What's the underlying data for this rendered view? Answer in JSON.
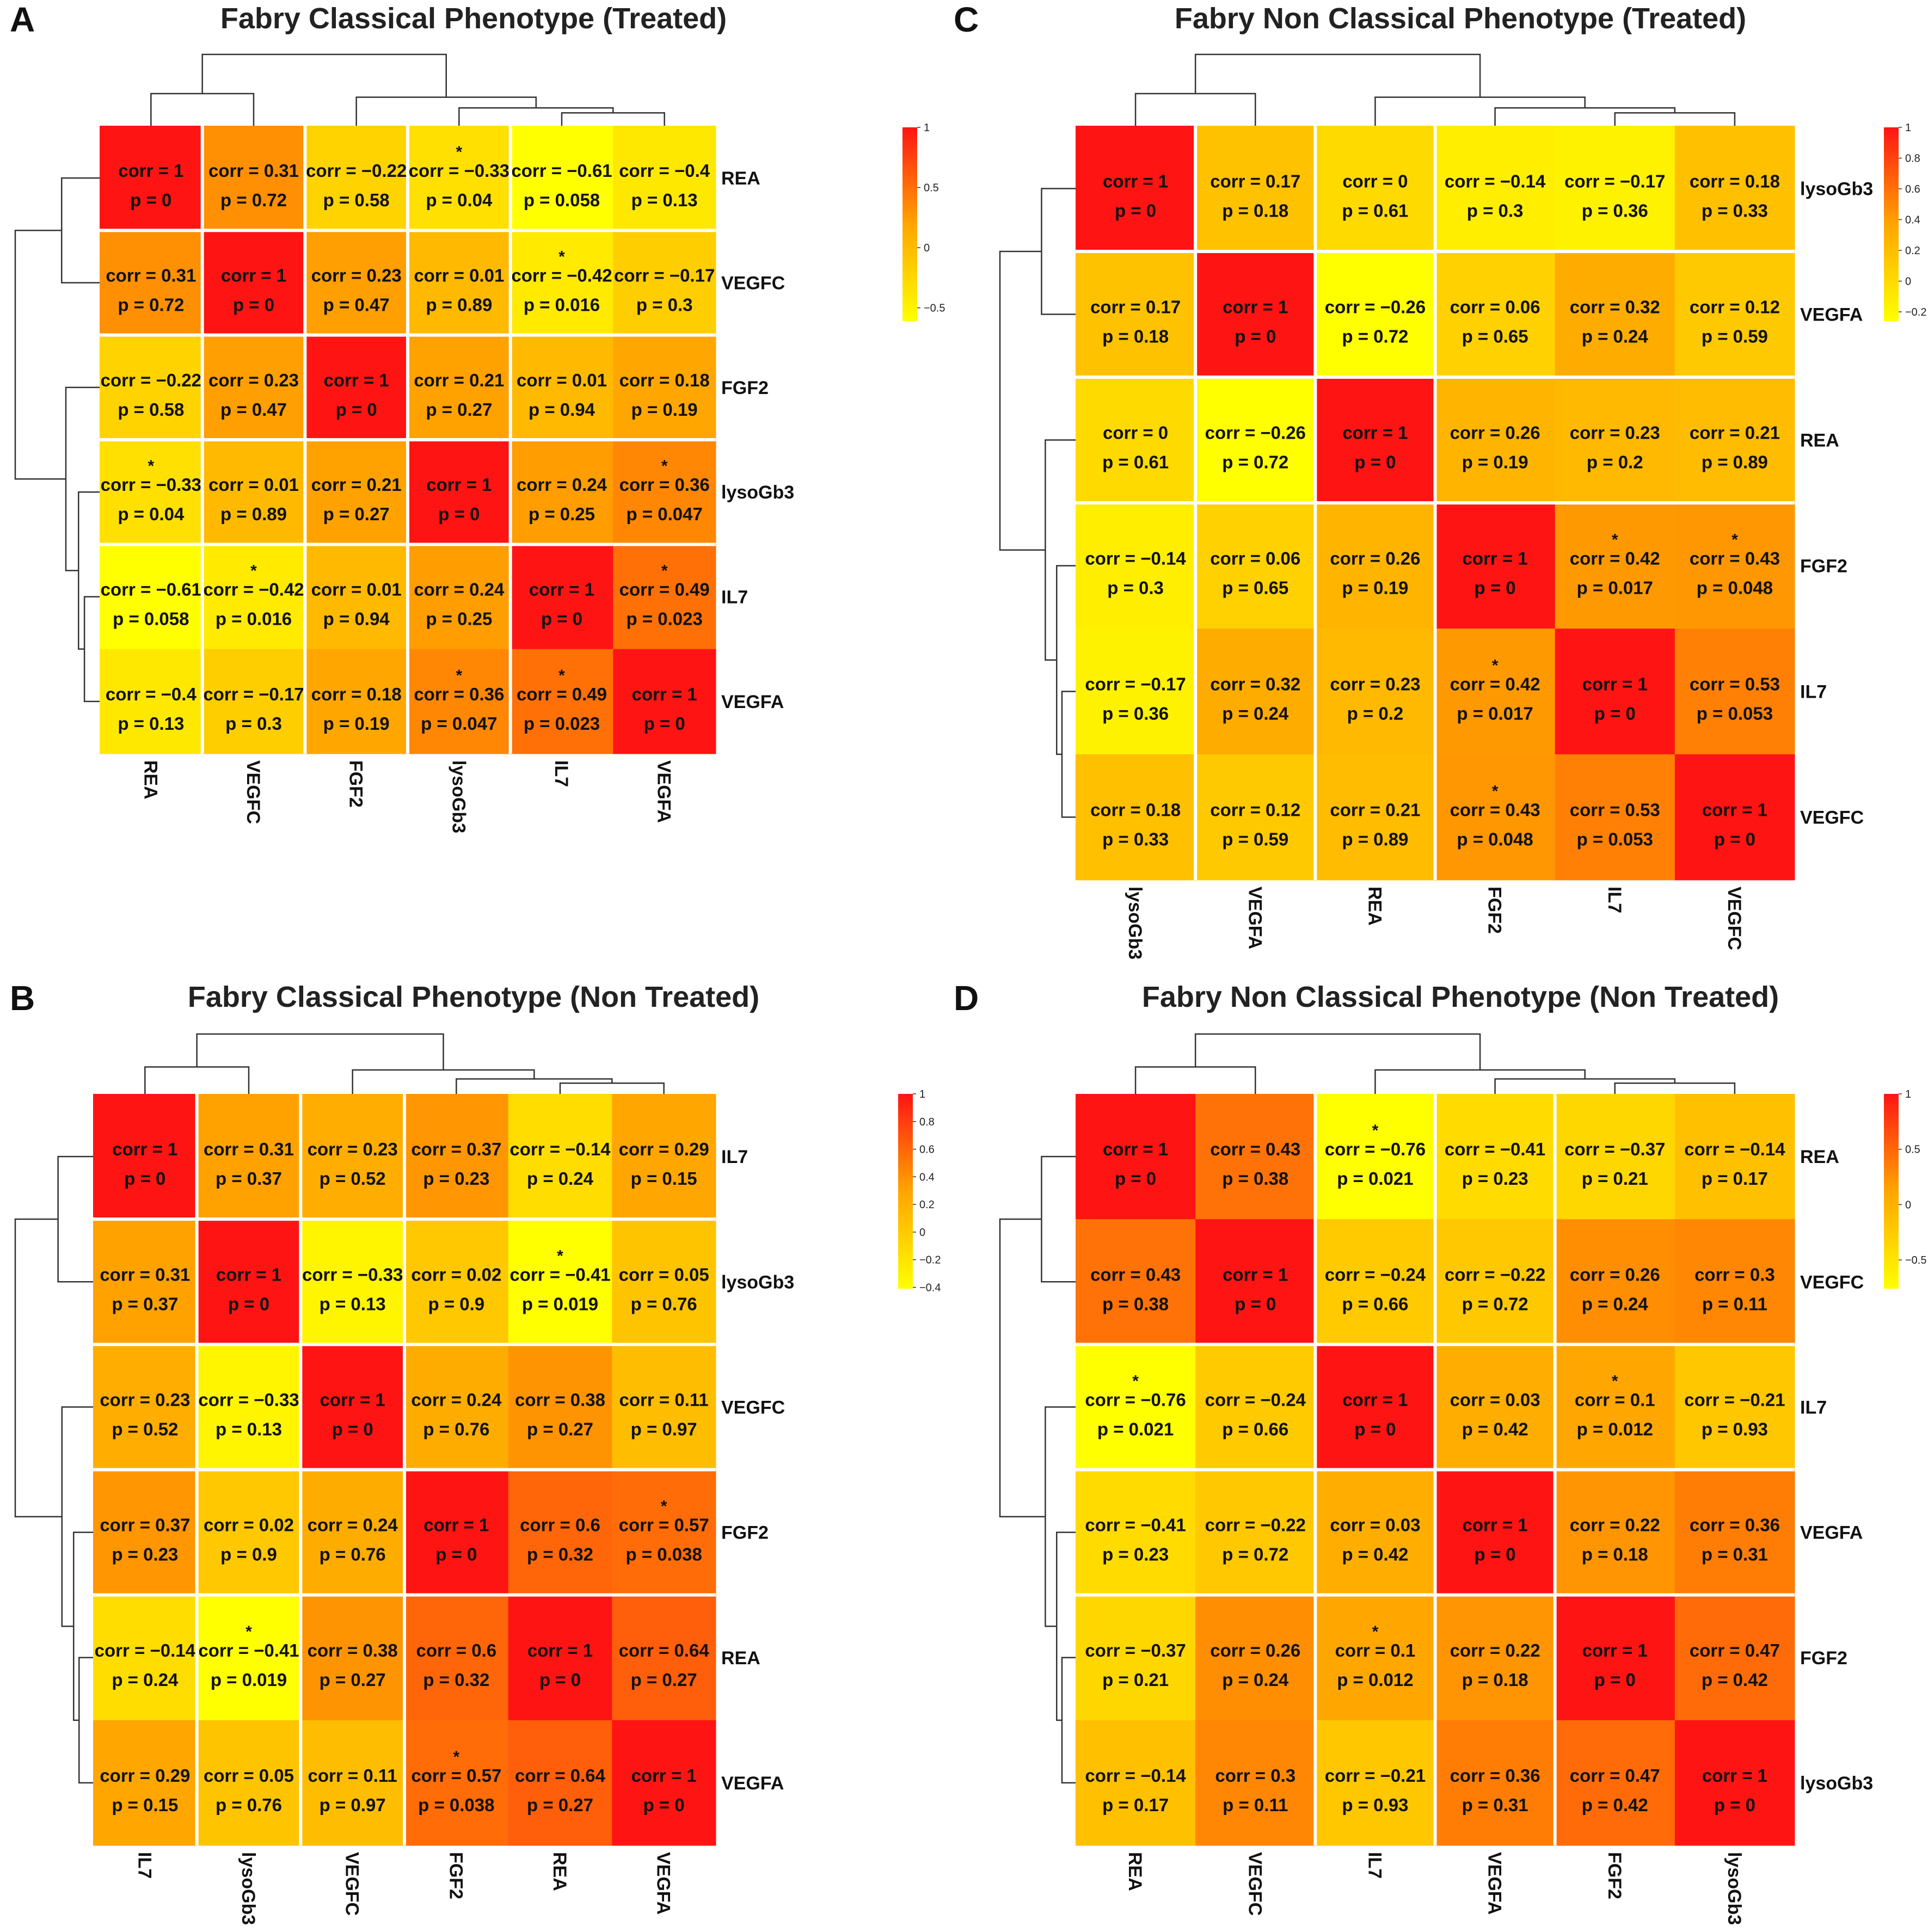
{
  "chart_data": [
    {
      "type": "heatmap",
      "panel": "A",
      "title": "Fabry Classical Phenotype (Treated)",
      "row_labels": [
        "REA",
        "VEGFC",
        "FGF2",
        "lysoGb3",
        "IL7",
        "VEGFA"
      ],
      "col_labels": [
        "REA",
        "VEGFC",
        "FGF2",
        "lysoGb3",
        "IL7",
        "VEGFA"
      ],
      "corr": [
        [
          1,
          0.31,
          -0.22,
          -0.33,
          -0.61,
          -0.4
        ],
        [
          0.31,
          1,
          0.23,
          0.01,
          -0.42,
          -0.17
        ],
        [
          -0.22,
          0.23,
          1,
          0.21,
          0.01,
          0.18
        ],
        [
          -0.33,
          0.01,
          0.21,
          1,
          0.24,
          0.36
        ],
        [
          -0.61,
          -0.42,
          0.01,
          0.24,
          1,
          0.49
        ],
        [
          -0.4,
          -0.17,
          0.18,
          0.36,
          0.49,
          1
        ]
      ],
      "p": [
        [
          "0",
          "0.72",
          "0.58",
          "0.04",
          "0.058",
          "0.13"
        ],
        [
          "0.72",
          "0",
          "0.47",
          "0.89",
          "0.016",
          "0.3"
        ],
        [
          "0.58",
          "0.47",
          "0",
          "0.27",
          "0.94",
          "0.19"
        ],
        [
          "0.04",
          "0.89",
          "0.27",
          "0",
          "0.25",
          "0.047"
        ],
        [
          "0.058",
          "0.016",
          "0.94",
          "0.25",
          "0",
          "0.023"
        ],
        [
          "0.13",
          "0.3",
          "0.19",
          "0.047",
          "0.023",
          "0"
        ]
      ],
      "significant": [
        [
          false,
          false,
          false,
          true,
          false,
          false
        ],
        [
          false,
          false,
          false,
          false,
          true,
          false
        ],
        [
          false,
          false,
          false,
          false,
          false,
          false
        ],
        [
          true,
          false,
          false,
          false,
          false,
          true
        ],
        [
          false,
          true,
          false,
          false,
          false,
          true
        ],
        [
          false,
          false,
          false,
          true,
          true,
          false
        ]
      ],
      "row_gaps_after": [
        1,
        2,
        3,
        4
      ],
      "col_gaps_after": [
        1,
        2,
        3,
        4
      ],
      "legend_ticks": [
        "1",
        "0.5",
        "0",
        "-0.5"
      ],
      "legend_range": [
        -0.61,
        1
      ]
    },
    {
      "type": "heatmap",
      "panel": "B",
      "title": "Fabry Classical Phenotype (Non Treated)",
      "row_labels": [
        "IL7",
        "lysoGb3",
        "VEGFC",
        "FGF2",
        "REA",
        "VEGFA"
      ],
      "col_labels": [
        "IL7",
        "lysoGb3",
        "VEGFC",
        "FGF2",
        "REA",
        "VEGFA"
      ],
      "corr": [
        [
          1,
          0.31,
          0.23,
          0.37,
          -0.14,
          0.29
        ],
        [
          0.31,
          1,
          -0.33,
          0.02,
          -0.41,
          0.05
        ],
        [
          0.23,
          -0.33,
          1,
          0.24,
          0.38,
          0.11
        ],
        [
          0.37,
          0.02,
          0.24,
          1,
          0.6,
          0.57
        ],
        [
          -0.14,
          -0.41,
          0.38,
          0.6,
          1,
          0.64
        ],
        [
          0.29,
          0.05,
          0.11,
          0.57,
          0.64,
          1
        ]
      ],
      "p": [
        [
          "0",
          "0.37",
          "0.52",
          "0.23",
          "0.24",
          "0.15"
        ],
        [
          "0.37",
          "0",
          "0.13",
          "0.9",
          "0.019",
          "0.76"
        ],
        [
          "0.52",
          "0.13",
          "0",
          "0.76",
          "0.27",
          "0.97"
        ],
        [
          "0.23",
          "0.9",
          "0.76",
          "0",
          "0.32",
          "0.038"
        ],
        [
          "0.24",
          "0.019",
          "0.27",
          "0.32",
          "0",
          "0.27"
        ],
        [
          "0.15",
          "0.76",
          "0.97",
          "0.038",
          "0.27",
          "0"
        ]
      ],
      "significant": [
        [
          false,
          false,
          false,
          false,
          false,
          false
        ],
        [
          false,
          false,
          false,
          false,
          true,
          false
        ],
        [
          false,
          false,
          false,
          false,
          false,
          false
        ],
        [
          false,
          false,
          false,
          false,
          false,
          true
        ],
        [
          false,
          true,
          false,
          false,
          false,
          false
        ],
        [
          false,
          false,
          false,
          true,
          false,
          false
        ]
      ],
      "row_gaps_after": [
        1,
        2,
        3,
        4
      ],
      "col_gaps_after": [
        1,
        2,
        3
      ],
      "legend_ticks": [
        "1",
        "0.8",
        "0.6",
        "0.4",
        "0.2",
        "0",
        "-0.2",
        "-0.4"
      ],
      "legend_range": [
        -0.41,
        1
      ]
    },
    {
      "type": "heatmap",
      "panel": "C",
      "title": "Fabry Non Classical Phenotype (Treated)",
      "row_labels": [
        "lysoGb3",
        "VEGFA",
        "REA",
        "FGF2",
        "IL7",
        "VEGFC"
      ],
      "col_labels": [
        "lysoGb3",
        "VEGFA",
        "REA",
        "FGF2",
        "IL7",
        "VEGFC"
      ],
      "corr": [
        [
          1,
          0.17,
          0,
          -0.14,
          -0.17,
          0.18
        ],
        [
          0.17,
          1,
          -0.26,
          0.06,
          0.32,
          0.12
        ],
        [
          0,
          -0.26,
          1,
          0.26,
          0.23,
          0.21
        ],
        [
          -0.14,
          0.06,
          0.26,
          1,
          0.42,
          0.43
        ],
        [
          -0.17,
          0.32,
          0.23,
          0.42,
          1,
          0.53
        ],
        [
          0.18,
          0.12,
          0.21,
          0.43,
          0.53,
          1
        ]
      ],
      "p": [
        [
          "0",
          "0.18",
          "0.61",
          "0.3",
          "0.36",
          "0.33"
        ],
        [
          "0.18",
          "0",
          "0.72",
          "0.65",
          "0.24",
          "0.59"
        ],
        [
          "0.61",
          "0.72",
          "0",
          "0.19",
          "0.2",
          "0.89"
        ],
        [
          "0.3",
          "0.65",
          "0.19",
          "0",
          "0.017",
          "0.048"
        ],
        [
          "0.36",
          "0.24",
          "0.2",
          "0.017",
          "0",
          "0.053"
        ],
        [
          "0.33",
          "0.59",
          "0.89",
          "0.048",
          "0.053",
          "0"
        ]
      ],
      "significant": [
        [
          false,
          false,
          false,
          false,
          false,
          false
        ],
        [
          false,
          false,
          false,
          false,
          false,
          false
        ],
        [
          false,
          false,
          false,
          false,
          false,
          false
        ],
        [
          false,
          false,
          false,
          false,
          true,
          true
        ],
        [
          false,
          false,
          false,
          true,
          false,
          false
        ],
        [
          false,
          false,
          false,
          true,
          false,
          false
        ]
      ],
      "row_gaps_after": [
        1,
        2,
        3
      ],
      "col_gaps_after": [
        1,
        2,
        3
      ],
      "legend_ticks": [
        "1",
        "0.8",
        "0.6",
        "0.4",
        "0.2",
        "0",
        "-0.2"
      ],
      "legend_range": [
        -0.26,
        1
      ]
    },
    {
      "type": "heatmap",
      "panel": "D",
      "title": "Fabry Non Classical Phenotype (Non Treated)",
      "row_labels": [
        "REA",
        "VEGFC",
        "IL7",
        "VEGFA",
        "FGF2",
        "lysoGb3"
      ],
      "col_labels": [
        "REA",
        "VEGFC",
        "IL7",
        "VEGFA",
        "FGF2",
        "lysoGb3"
      ],
      "corr": [
        [
          1,
          0.43,
          -0.76,
          -0.41,
          -0.37,
          -0.14
        ],
        [
          0.43,
          1,
          -0.24,
          -0.22,
          0.26,
          0.3
        ],
        [
          -0.76,
          -0.24,
          1,
          0.03,
          0.1,
          -0.21
        ],
        [
          -0.41,
          -0.22,
          0.03,
          1,
          0.22,
          0.36
        ],
        [
          -0.37,
          0.26,
          0.1,
          0.22,
          1,
          0.47
        ],
        [
          -0.14,
          0.3,
          -0.21,
          0.36,
          0.47,
          1
        ]
      ],
      "p": [
        [
          "0",
          "0.38",
          "0.021",
          "0.23",
          "0.21",
          "0.17"
        ],
        [
          "0.38",
          "0",
          "0.66",
          "0.72",
          "0.24",
          "0.11"
        ],
        [
          "0.021",
          "0.66",
          "0",
          "0.42",
          "0.012",
          "0.93"
        ],
        [
          "0.23",
          "0.72",
          "0.42",
          "0",
          "0.18",
          "0.31"
        ],
        [
          "0.21",
          "0.24",
          "0.012",
          "0.18",
          "0",
          "0.42"
        ],
        [
          "0.17",
          "0.11",
          "0.93",
          "0.31",
          "0.42",
          "0"
        ]
      ],
      "significant": [
        [
          false,
          false,
          true,
          false,
          false,
          false
        ],
        [
          false,
          false,
          false,
          false,
          false,
          false
        ],
        [
          true,
          false,
          false,
          false,
          true,
          false
        ],
        [
          false,
          false,
          false,
          false,
          false,
          false
        ],
        [
          false,
          false,
          true,
          false,
          false,
          false
        ],
        [
          false,
          false,
          false,
          false,
          false,
          false
        ]
      ],
      "row_gaps_after": [
        2,
        3,
        4
      ],
      "col_gaps_after": [
        2,
        3,
        4
      ],
      "legend_ticks": [
        "1",
        "0.5",
        "0",
        "-0.5"
      ],
      "legend_range": [
        -0.76,
        1
      ]
    }
  ]
}
